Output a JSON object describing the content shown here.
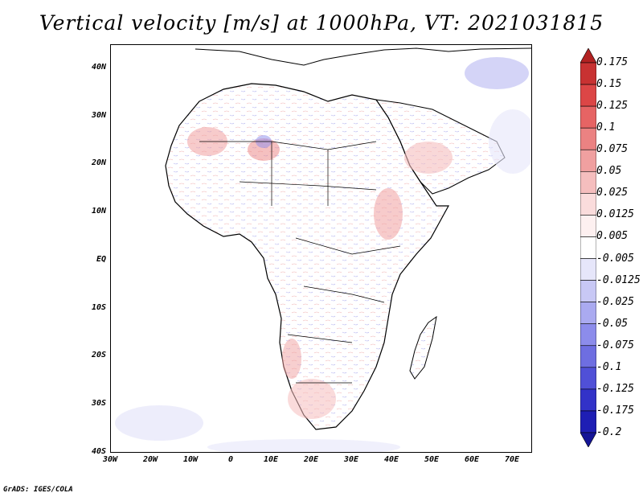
{
  "title": "Vertical velocity [m/s] at 1000hPa, VT: 2021031815",
  "credit": "GrADS: IGES/COLA",
  "map": {
    "lat_range": [
      -40,
      45
    ],
    "lon_range": [
      -30,
      75
    ],
    "lat_labels": [
      "40N",
      "30N",
      "20N",
      "10N",
      "EQ",
      "10S",
      "20S",
      "30S",
      "40S"
    ],
    "lat_values": [
      40,
      30,
      20,
      10,
      0,
      -10,
      -20,
      -30,
      -40
    ],
    "lon_labels": [
      "30W",
      "20W",
      "10W",
      "0",
      "10E",
      "20E",
      "30E",
      "40E",
      "50E",
      "60E",
      "70E"
    ],
    "lon_values": [
      -30,
      -20,
      -10,
      0,
      10,
      20,
      30,
      40,
      50,
      60,
      70
    ]
  },
  "colorbar": {
    "labels": [
      "0.175",
      "0.15",
      "0.125",
      "0.1",
      "0.075",
      "0.05",
      "0.025",
      "0.0125",
      "0.005",
      "-0.005",
      "-0.0125",
      "-0.025",
      "-0.05",
      "-0.075",
      "-0.1",
      "-0.125",
      "-0.175",
      "-0.2"
    ],
    "colors": [
      "#b22222",
      "#c83232",
      "#dc4646",
      "#e66464",
      "#eb8282",
      "#f0a0a0",
      "#f5bebe",
      "#fadcdc",
      "#fdf0f0",
      "#ffffff",
      "#e6e6fa",
      "#c8c8f5",
      "#aaaaf0",
      "#8c8ceb",
      "#6e6ee1",
      "#5050d7",
      "#3232c8",
      "#1e1eb4",
      "#141496"
    ]
  }
}
